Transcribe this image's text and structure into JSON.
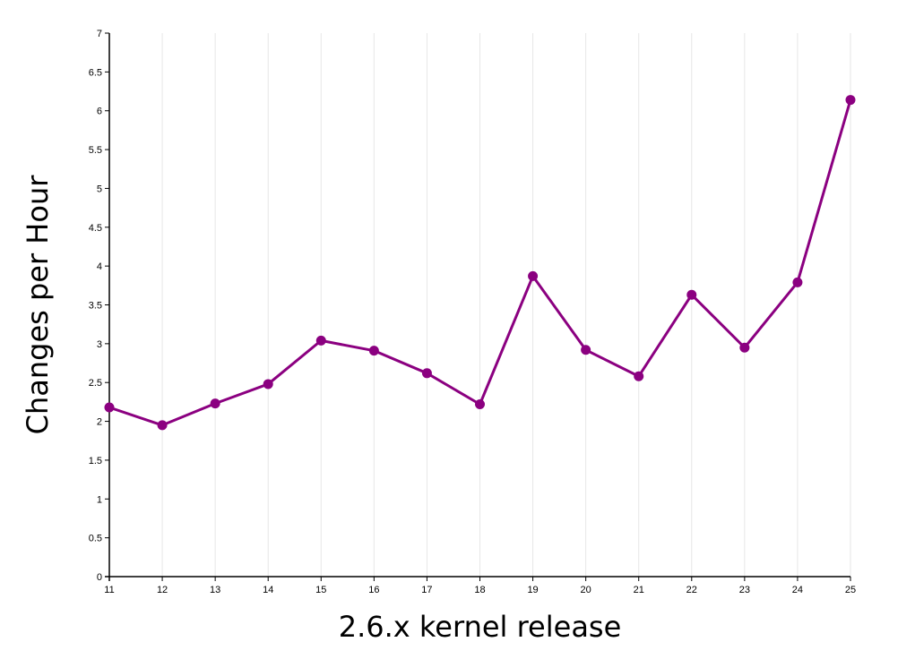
{
  "chart_data": {
    "type": "line",
    "title": "",
    "xlabel": "2.6.x kernel release",
    "ylabel": "Changes per Hour",
    "x": [
      11,
      12,
      13,
      14,
      15,
      16,
      17,
      18,
      19,
      20,
      21,
      22,
      23,
      24,
      25
    ],
    "x_tick_labels": [
      "11",
      "12",
      "13",
      "14",
      "15",
      "16",
      "17",
      "18",
      "19",
      "20",
      "21",
      "22",
      "23",
      "24",
      "25"
    ],
    "y_ticks": [
      0,
      0.5,
      1,
      1.5,
      2,
      2.5,
      3,
      3.5,
      4,
      4.5,
      5,
      5.5,
      6,
      6.5,
      7
    ],
    "y_tick_labels": [
      "0",
      "0.5",
      "1",
      "1.5",
      "2",
      "2.5",
      "3",
      "3.5",
      "4",
      "4.5",
      "5",
      "5.5",
      "6",
      "6.5",
      "7"
    ],
    "xlim": [
      11,
      25
    ],
    "ylim": [
      0,
      7
    ],
    "grid": "vertical",
    "legend": "none",
    "series": [
      {
        "values": [
          2.18,
          1.95,
          2.23,
          2.48,
          3.04,
          2.91,
          2.62,
          2.22,
          3.87,
          2.92,
          2.58,
          3.63,
          2.95,
          3.79,
          6.14
        ]
      }
    ],
    "colors": {
      "series": "#8b0080",
      "grid": "#e6e6e6",
      "axis": "#000000"
    }
  }
}
